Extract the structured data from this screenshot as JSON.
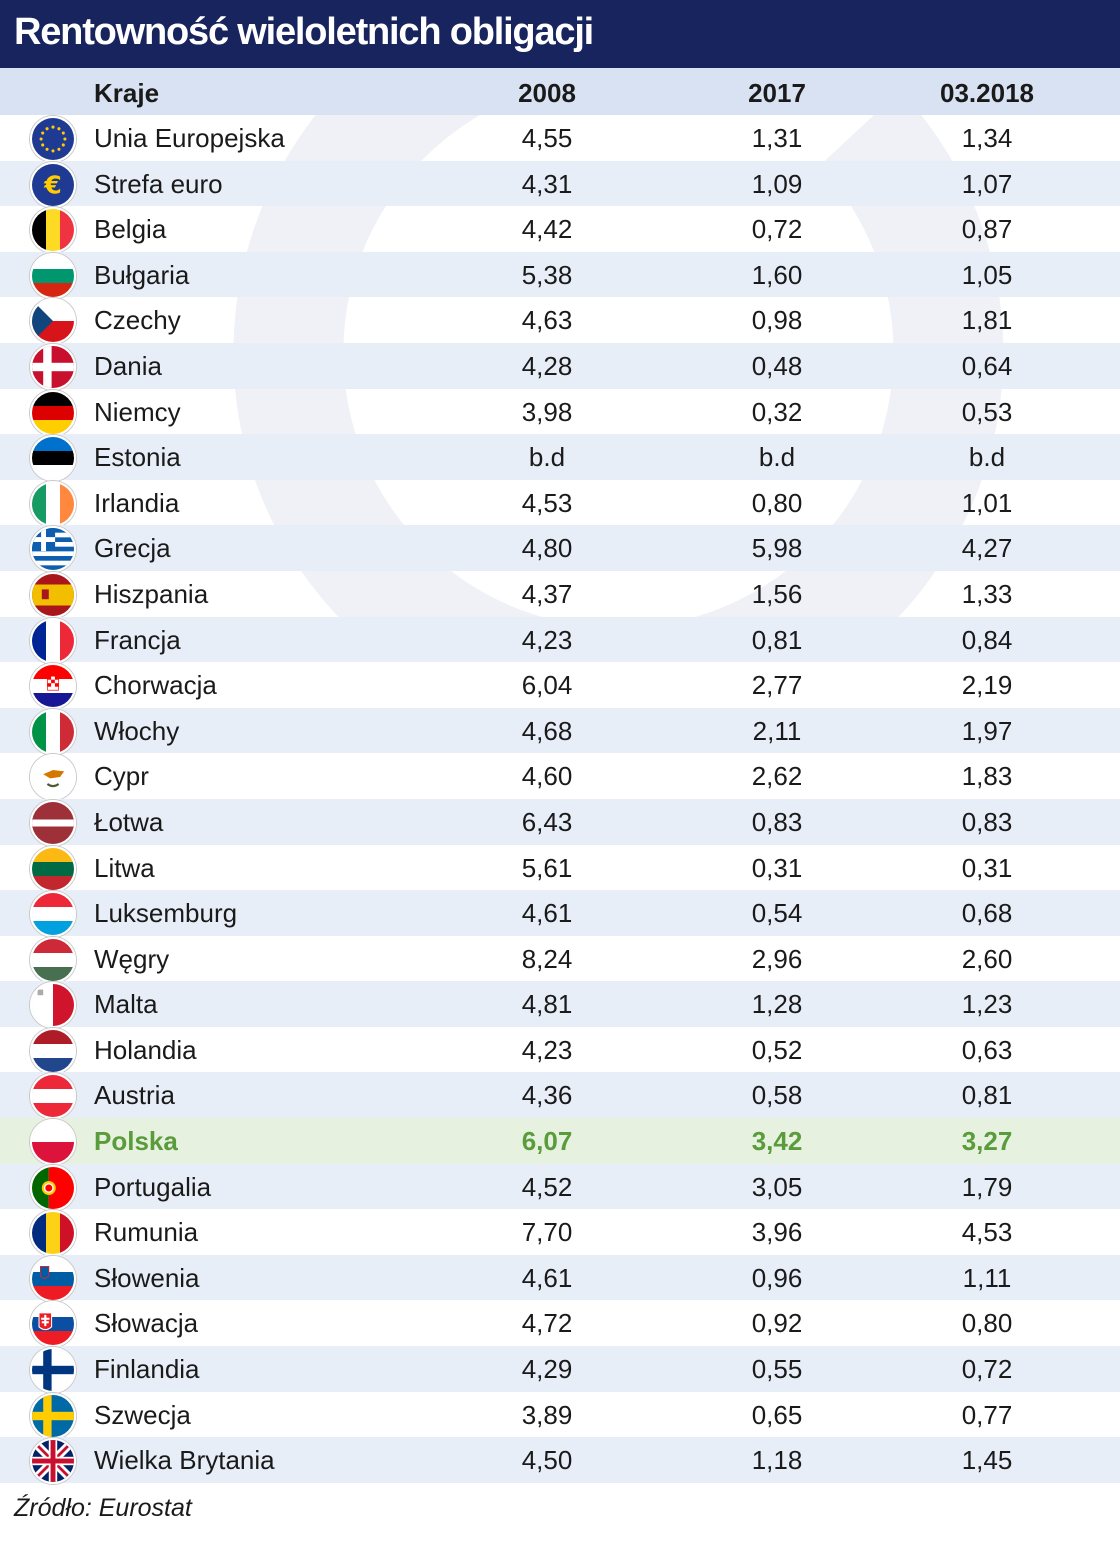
{
  "title": "Rentowność wieloletnich obligacji",
  "source": "Źródło: Eurostat",
  "colors": {
    "title_bg": "#17245d",
    "header_bg": "#d9e2f2",
    "alt_row_bg": "#e8eef8",
    "highlight_bg": "#e6f2df",
    "highlight_text": "#5a9b3b"
  },
  "chart_data": {
    "type": "table",
    "title": "Rentowność wieloletnich obligacji",
    "columns": [
      "Kraje",
      "2008",
      "2017",
      "03.2018"
    ],
    "highlight_row": "Polska",
    "rows": [
      {
        "country": "Unia Europejska",
        "flag_icon": "eu-flag-icon",
        "v2008": "4,55",
        "v2017": "1,31",
        "v2018": "1,34"
      },
      {
        "country": "Strefa euro",
        "flag_icon": "euro-sign-icon",
        "v2008": "4,31",
        "v2017": "1,09",
        "v2018": "1,07"
      },
      {
        "country": "Belgia",
        "flag_icon": "belgium-flag-icon",
        "v2008": "4,42",
        "v2017": "0,72",
        "v2018": "0,87"
      },
      {
        "country": "Bułgaria",
        "flag_icon": "bulgaria-flag-icon",
        "v2008": "5,38",
        "v2017": "1,60",
        "v2018": "1,05"
      },
      {
        "country": "Czechy",
        "flag_icon": "czechia-flag-icon",
        "v2008": "4,63",
        "v2017": "0,98",
        "v2018": "1,81"
      },
      {
        "country": "Dania",
        "flag_icon": "denmark-flag-icon",
        "v2008": "4,28",
        "v2017": "0,48",
        "v2018": "0,64"
      },
      {
        "country": "Niemcy",
        "flag_icon": "germany-flag-icon",
        "v2008": "3,98",
        "v2017": "0,32",
        "v2018": "0,53"
      },
      {
        "country": "Estonia",
        "flag_icon": "estonia-flag-icon",
        "v2008": "b.d",
        "v2017": "b.d",
        "v2018": "b.d"
      },
      {
        "country": "Irlandia",
        "flag_icon": "ireland-flag-icon",
        "v2008": "4,53",
        "v2017": "0,80",
        "v2018": "1,01"
      },
      {
        "country": "Grecja",
        "flag_icon": "greece-flag-icon",
        "v2008": "4,80",
        "v2017": "5,98",
        "v2018": "4,27"
      },
      {
        "country": "Hiszpania",
        "flag_icon": "spain-flag-icon",
        "v2008": "4,37",
        "v2017": "1,56",
        "v2018": "1,33"
      },
      {
        "country": "Francja",
        "flag_icon": "france-flag-icon",
        "v2008": "4,23",
        "v2017": "0,81",
        "v2018": "0,84"
      },
      {
        "country": "Chorwacja",
        "flag_icon": "croatia-flag-icon",
        "v2008": "6,04",
        "v2017": "2,77",
        "v2018": "2,19"
      },
      {
        "country": "Włochy",
        "flag_icon": "italy-flag-icon",
        "v2008": "4,68",
        "v2017": "2,11",
        "v2018": "1,97"
      },
      {
        "country": "Cypr",
        "flag_icon": "cyprus-flag-icon",
        "v2008": "4,60",
        "v2017": "2,62",
        "v2018": "1,83"
      },
      {
        "country": "Łotwa",
        "flag_icon": "latvia-flag-icon",
        "v2008": "6,43",
        "v2017": "0,83",
        "v2018": "0,83"
      },
      {
        "country": "Litwa",
        "flag_icon": "lithuania-flag-icon",
        "v2008": "5,61",
        "v2017": "0,31",
        "v2018": "0,31"
      },
      {
        "country": "Luksemburg",
        "flag_icon": "luxembourg-flag-icon",
        "v2008": "4,61",
        "v2017": "0,54",
        "v2018": "0,68"
      },
      {
        "country": "Węgry",
        "flag_icon": "hungary-flag-icon",
        "v2008": "8,24",
        "v2017": "2,96",
        "v2018": "2,60"
      },
      {
        "country": "Malta",
        "flag_icon": "malta-flag-icon",
        "v2008": "4,81",
        "v2017": "1,28",
        "v2018": "1,23"
      },
      {
        "country": "Holandia",
        "flag_icon": "netherlands-flag-icon",
        "v2008": "4,23",
        "v2017": "0,52",
        "v2018": "0,63"
      },
      {
        "country": "Austria",
        "flag_icon": "austria-flag-icon",
        "v2008": "4,36",
        "v2017": "0,58",
        "v2018": "0,81"
      },
      {
        "country": "Polska",
        "flag_icon": "poland-flag-icon",
        "v2008": "6,07",
        "v2017": "3,42",
        "v2018": "3,27"
      },
      {
        "country": "Portugalia",
        "flag_icon": "portugal-flag-icon",
        "v2008": "4,52",
        "v2017": "3,05",
        "v2018": "1,79"
      },
      {
        "country": "Rumunia",
        "flag_icon": "romania-flag-icon",
        "v2008": "7,70",
        "v2017": "3,96",
        "v2018": "4,53"
      },
      {
        "country": "Słowenia",
        "flag_icon": "slovenia-flag-icon",
        "v2008": "4,61",
        "v2017": "0,96",
        "v2018": "1,11"
      },
      {
        "country": "Słowacja",
        "flag_icon": "slovakia-flag-icon",
        "v2008": "4,72",
        "v2017": "0,92",
        "v2018": "0,80"
      },
      {
        "country": "Finlandia",
        "flag_icon": "finland-flag-icon",
        "v2008": "4,29",
        "v2017": "0,55",
        "v2018": "0,72"
      },
      {
        "country": "Szwecja",
        "flag_icon": "sweden-flag-icon",
        "v2008": "3,89",
        "v2017": "0,65",
        "v2018": "0,77"
      },
      {
        "country": "Wielka Brytania",
        "flag_icon": "uk-flag-icon",
        "v2008": "4,50",
        "v2017": "1,18",
        "v2018": "1,45"
      }
    ]
  }
}
